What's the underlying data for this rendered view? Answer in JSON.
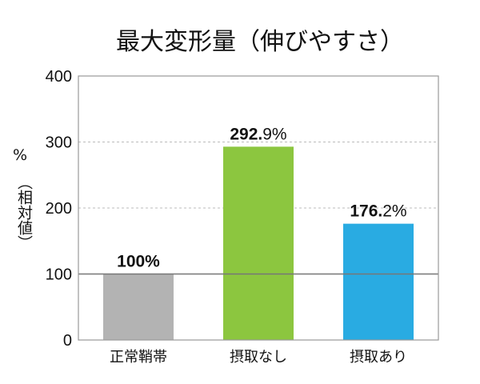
{
  "chart_data": {
    "type": "bar",
    "title": "最大変形量（伸びやすさ）",
    "ylabel_unit": "%",
    "ylabel": "（相対値）",
    "categories": [
      "正常鞘帯",
      "摂取なし",
      "摂取あり"
    ],
    "values": [
      100,
      292.9,
      176.2
    ],
    "value_labels": [
      {
        "main": "100%",
        "rest": ""
      },
      {
        "main": "292.",
        "rest": "9%"
      },
      {
        "main": "176.",
        "rest": "2%"
      }
    ],
    "colors": [
      "#b3b3b3",
      "#8cc63f",
      "#29abe2"
    ],
    "ylim": [
      0,
      400
    ],
    "yticks": [
      0,
      100,
      200,
      300,
      400
    ],
    "reference_line": 100,
    "grid": true
  }
}
